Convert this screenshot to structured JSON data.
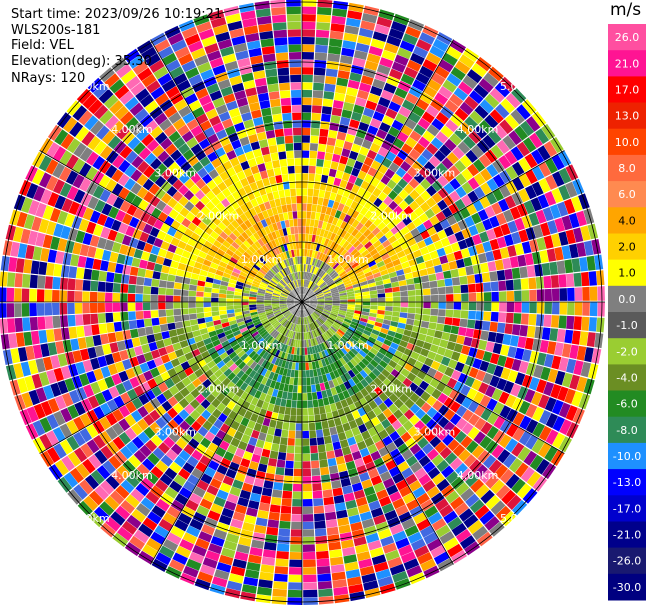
{
  "info": {
    "start_time": "Start time: 2023/09/26 10:19:21",
    "instrument": "WLS200s-181",
    "field": "Field: VEL",
    "elevation": "Elevation(deg): 35.30",
    "nrays": "NRays: 120"
  },
  "colorbar": {
    "unit": "m/s",
    "ticks": [
      "26.0",
      "21.0",
      "17.0",
      "13.0",
      "10.0",
      "8.0",
      "6.0",
      "4.0",
      "2.0",
      "1.0",
      "0.0",
      "-1.0",
      "-2.0",
      "-4.0",
      "-6.0",
      "-8.0",
      "-10.0",
      "-13.0",
      "-17.0",
      "-21.0",
      "-26.0",
      "-30.0"
    ],
    "colors": [
      "#ff4fa0",
      "#ff1493",
      "#ff0000",
      "#ee2200",
      "#ff4400",
      "#ff6a3d",
      "#ff8a50",
      "#ffa500",
      "#ffd000",
      "#ffff00",
      "#7f7f7f",
      "#5a5a5a",
      "#9acd32",
      "#6b8e23",
      "#228b22",
      "#2e8b57",
      "#1e90ff",
      "#0000ff",
      "#0000cd",
      "#00008b",
      "#191970",
      "#000080"
    ]
  },
  "range_rings": {
    "labels": [
      "1.00km",
      "2.00km",
      "3.00km",
      "4.00km",
      "5.00km"
    ]
  },
  "ppi": {
    "field": "VEL",
    "nrays": 120,
    "structure": "low-altitude core: grey/yellow (near-zero) at center, orange-yellow band in north half, green band in south half; outer gates noisy multicolor"
  }
}
